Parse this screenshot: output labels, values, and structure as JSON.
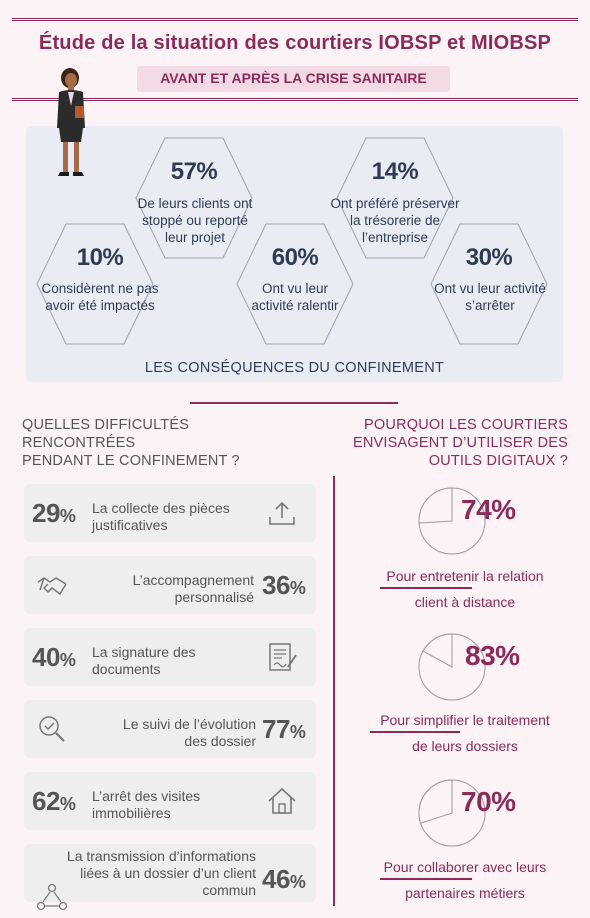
{
  "header": {
    "title": "Étude de la situation des courtiers IOBSP et MIOBSP",
    "subtitle": "AVANT ET APRÈS LA CRISE  SANITAIRE"
  },
  "consequences": {
    "caption": "LES CONSÉQUENCES DU CONFINEMENT",
    "items": [
      {
        "pct": "57%",
        "l1": "De leurs clients ont",
        "l2": "stoppé ou reporté",
        "l3": "leur projet"
      },
      {
        "pct": "14%",
        "l1": "Ont préféré préserver",
        "l2": "la trésorerie de",
        "l3": "l’entreprise"
      },
      {
        "pct": "10%",
        "l1": "Considèrent ne pas",
        "l2": "avoir été impactés"
      },
      {
        "pct": "60%",
        "l1": "Ont vu leur",
        "l2": "activité ralentir"
      },
      {
        "pct": "30%",
        "l1": "Ont vu leur activité",
        "l2": "s’arrêter"
      }
    ]
  },
  "difficulties": {
    "heading": [
      "QUELLES DIFFICULTÉS",
      "RENCONTRÉES",
      "PENDANT LE CONFINEMENT ?"
    ],
    "items": [
      {
        "num": "29",
        "unit": "%",
        "l1": "La collecte des pièces",
        "l2": "justificatives",
        "icon": "upload-icon"
      },
      {
        "num": "36",
        "unit": "%",
        "l1": "L’accompagnement",
        "l2": "personnalisé",
        "icon": "handshake-icon"
      },
      {
        "num": "40",
        "unit": "%",
        "l1": "La signature des",
        "l2": "documents",
        "icon": "contract-signature-icon"
      },
      {
        "num": "77",
        "unit": "%",
        "l1": "Le suivi de l’évolution",
        "l2": "des dossier",
        "icon": "target-search-icon"
      },
      {
        "num": "62",
        "unit": "%",
        "l1": "L’arrêt des visites",
        "l2": "immobilières",
        "icon": "house-icon"
      },
      {
        "num": "46",
        "unit": "%",
        "l1": "La transmission d’informations",
        "l2": "liées à un dossier d’un client",
        "l3": "commun",
        "icon": "people-network-icon"
      }
    ]
  },
  "digital": {
    "heading": [
      "POURQUOI LES COURTIERS",
      "ENVISAGENT D’UTILISER DES",
      "OUTILS DIGITAUX ?"
    ],
    "items": [
      {
        "pct": "74%",
        "value": 74,
        "l1": "Pour entretenir la relation",
        "l2": "client à distance"
      },
      {
        "pct": "83%",
        "value": 83,
        "l1": "Pour simplifier le traitement",
        "l2": "de leurs dossiers"
      },
      {
        "pct": "70%",
        "value": 70,
        "l1": "Pour collaborer avec leurs",
        "l2": "partenaires métiers"
      }
    ]
  },
  "colors": {
    "accent": "#8c2a5a",
    "dark_text": "#2f3b55",
    "grey_text": "#555555"
  }
}
